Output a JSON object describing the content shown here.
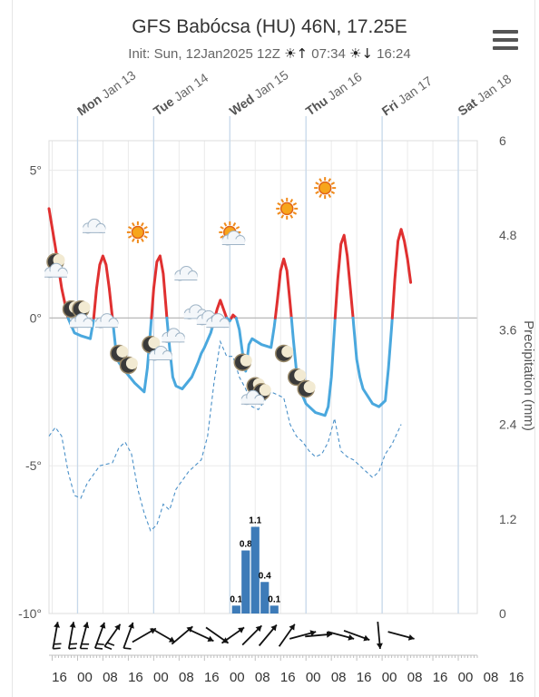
{
  "header": {
    "title": "GFS Babócsa (HU) 46N, 17.25E",
    "init_label": "Init: Sun, 12Jan2025 12Z",
    "sunrise": "07:34",
    "sunset": "16:24",
    "sunrise_icon": "sunrise-icon",
    "sunset_icon": "sunset-icon",
    "menu_icon": "hamburger-menu-icon"
  },
  "chart_data": {
    "type": "line",
    "x_unit": "hours since Sun 12 Jan 16:00",
    "x_range": [
      -1,
      134
    ],
    "days": [
      {
        "dow": "Mon",
        "date": "Jan 13",
        "hour": 8
      },
      {
        "dow": "Tue",
        "date": "Jan 14",
        "hour": 32
      },
      {
        "dow": "Wed",
        "date": "Jan 15",
        "hour": 56
      },
      {
        "dow": "Thu",
        "date": "Jan 16",
        "hour": 80
      },
      {
        "dow": "Fri",
        "date": "Jan 17",
        "hour": 104
      },
      {
        "dow": "Sat",
        "date": "Jan 18",
        "hour": 128
      }
    ],
    "hour_ticks": [
      {
        "h": 0,
        "label": "16"
      },
      {
        "h": 8,
        "label": "00"
      },
      {
        "h": 16,
        "label": "08"
      },
      {
        "h": 24,
        "label": "16"
      },
      {
        "h": 32,
        "label": "00"
      },
      {
        "h": 40,
        "label": "08"
      },
      {
        "h": 48,
        "label": "16"
      },
      {
        "h": 56,
        "label": "00"
      },
      {
        "h": 64,
        "label": "08"
      },
      {
        "h": 72,
        "label": "16"
      },
      {
        "h": 80,
        "label": "00"
      },
      {
        "h": 88,
        "label": "08"
      },
      {
        "h": 96,
        "label": "16"
      },
      {
        "h": 104,
        "label": "00"
      },
      {
        "h": 112,
        "label": "08"
      },
      {
        "h": 120,
        "label": "16"
      },
      {
        "h": 128,
        "label": "00"
      },
      {
        "h": 136,
        "label": "08"
      },
      {
        "h": 144,
        "label": "16"
      }
    ],
    "y_left": {
      "unit": "°C",
      "range": [
        -10,
        6
      ],
      "ticks": [
        {
          "v": 5,
          "label": "5°"
        },
        {
          "v": 0,
          "label": "0°"
        },
        {
          "v": -5,
          "label": "-5°"
        },
        {
          "v": -10,
          "label": "-10°"
        }
      ]
    },
    "y_right": {
      "label": "Precipitation (mm)",
      "range": [
        0,
        6
      ],
      "ticks": [
        "6",
        "4.8",
        "3.6",
        "2.4",
        "1.2",
        "0"
      ]
    },
    "series": [
      {
        "kind": "temperature",
        "color_above_zero": "#e03030",
        "color_below_zero": "#4aa8de",
        "points": [
          [
            -1,
            3.7
          ],
          [
            1,
            2.4
          ],
          [
            3,
            1.0
          ],
          [
            5,
            0.0
          ],
          [
            7,
            -0.5
          ],
          [
            9,
            -0.6
          ],
          [
            12,
            -0.7
          ],
          [
            13,
            -0.1
          ],
          [
            14,
            1.0
          ],
          [
            15,
            1.8
          ],
          [
            16,
            2.1
          ],
          [
            17,
            1.8
          ],
          [
            18,
            1.0
          ],
          [
            19,
            0.0
          ],
          [
            20,
            -1.0
          ],
          [
            21,
            -1.5
          ],
          [
            23,
            -1.8
          ],
          [
            26,
            -2.2
          ],
          [
            29,
            -2.5
          ],
          [
            30,
            -1.7
          ],
          [
            31,
            -0.4
          ],
          [
            32,
            1.0
          ],
          [
            33,
            1.9
          ],
          [
            34,
            2.1
          ],
          [
            35,
            1.5
          ],
          [
            36,
            0.2
          ],
          [
            37,
            -1.0
          ],
          [
            38,
            -2.0
          ],
          [
            39,
            -2.3
          ],
          [
            41,
            -2.4
          ],
          [
            44,
            -2.0
          ],
          [
            46,
            -1.5
          ],
          [
            47,
            -1.2
          ],
          [
            48,
            -1.0
          ],
          [
            50,
            -0.5
          ],
          [
            52,
            0.3
          ],
          [
            53,
            0.6
          ],
          [
            54,
            0.3
          ],
          [
            55,
            0.0
          ],
          [
            56,
            -0.1
          ],
          [
            57,
            0.1
          ],
          [
            58,
            0.0
          ],
          [
            59,
            -0.4
          ],
          [
            60,
            -1.2
          ],
          [
            61,
            -1.8
          ],
          [
            62,
            -0.9
          ],
          [
            63,
            -0.7
          ],
          [
            66,
            -0.9
          ],
          [
            69,
            -1.0
          ],
          [
            70,
            -0.3
          ],
          [
            71,
            0.6
          ],
          [
            72,
            1.6
          ],
          [
            73,
            2.0
          ],
          [
            74,
            1.6
          ],
          [
            75,
            0.5
          ],
          [
            76,
            -0.7
          ],
          [
            77,
            -1.8
          ],
          [
            78,
            -2.4
          ],
          [
            80,
            -2.9
          ],
          [
            83,
            -3.2
          ],
          [
            86,
            -3.3
          ],
          [
            87,
            -3.0
          ],
          [
            88,
            -2.0
          ],
          [
            89,
            -0.3
          ],
          [
            90,
            1.3
          ],
          [
            91,
            2.5
          ],
          [
            92,
            2.8
          ],
          [
            93,
            2.1
          ],
          [
            94,
            1.0
          ],
          [
            95,
            -0.2
          ],
          [
            96,
            -1.4
          ],
          [
            97,
            -2.0
          ],
          [
            98,
            -2.4
          ],
          [
            101,
            -2.9
          ],
          [
            103,
            -3.0
          ],
          [
            105,
            -2.8
          ],
          [
            106,
            -1.7
          ],
          [
            107,
            -0.3
          ],
          [
            108,
            1.3
          ],
          [
            109,
            2.6
          ],
          [
            110,
            3.0
          ],
          [
            111,
            2.6
          ],
          [
            112,
            2.0
          ],
          [
            113,
            1.2
          ]
        ]
      },
      {
        "kind": "dew-point",
        "color": "#4a90c8",
        "style": "dashed",
        "points": [
          [
            -1,
            -4.0
          ],
          [
            1,
            -3.7
          ],
          [
            3,
            -4.0
          ],
          [
            5,
            -5.2
          ],
          [
            7,
            -6.0
          ],
          [
            9,
            -6.1
          ],
          [
            11,
            -5.6
          ],
          [
            15,
            -5.0
          ],
          [
            19,
            -4.9
          ],
          [
            21,
            -4.4
          ],
          [
            23,
            -4.2
          ],
          [
            25,
            -4.6
          ],
          [
            27,
            -5.8
          ],
          [
            29,
            -6.6
          ],
          [
            31,
            -7.2
          ],
          [
            33,
            -7.0
          ],
          [
            35,
            -6.3
          ],
          [
            37,
            -6.5
          ],
          [
            39,
            -5.8
          ],
          [
            43,
            -5.2
          ],
          [
            47,
            -4.8
          ],
          [
            49,
            -4.0
          ],
          [
            51,
            -2.2
          ],
          [
            53,
            -0.8
          ],
          [
            55,
            -1.3
          ],
          [
            57,
            -1.3
          ],
          [
            59,
            -2.0
          ],
          [
            61,
            -2.4
          ],
          [
            63,
            -3.0
          ],
          [
            65,
            -3.1
          ],
          [
            67,
            -2.8
          ],
          [
            69,
            -2.5
          ],
          [
            71,
            -2.6
          ],
          [
            73,
            -2.7
          ],
          [
            75,
            -3.6
          ],
          [
            77,
            -4.0
          ],
          [
            79,
            -4.2
          ],
          [
            81,
            -4.5
          ],
          [
            83,
            -4.7
          ],
          [
            85,
            -4.6
          ],
          [
            87,
            -4.2
          ],
          [
            89,
            -3.4
          ],
          [
            91,
            -4.5
          ],
          [
            93,
            -4.7
          ],
          [
            95,
            -4.8
          ],
          [
            97,
            -5.0
          ],
          [
            99,
            -5.2
          ],
          [
            101,
            -5.4
          ],
          [
            103,
            -5.2
          ],
          [
            105,
            -4.6
          ],
          [
            107,
            -4.3
          ],
          [
            110,
            -3.6
          ]
        ]
      },
      {
        "kind": "precipitation",
        "type": "bar",
        "color": "#3d7bb8",
        "bars": [
          {
            "h": 58,
            "value": 0.1,
            "label": "0.1"
          },
          {
            "h": 61,
            "value": 0.8,
            "label": "0.8"
          },
          {
            "h": 64,
            "value": 1.1,
            "label": "1.1"
          },
          {
            "h": 67,
            "value": 0.4,
            "label": "0.4"
          },
          {
            "h": 70,
            "value": 0.1,
            "label": "0.1"
          }
        ]
      }
    ],
    "weather_icons": [
      {
        "h": 1,
        "t": 1.9,
        "icon": "moon-icon"
      },
      {
        "h": 1,
        "t": 1.6,
        "icon": "cloud-icon"
      },
      {
        "h": 6,
        "t": 0.3,
        "icon": "moon-icon"
      },
      {
        "h": 9,
        "t": 0.3,
        "icon": "moon-icon"
      },
      {
        "h": 9,
        "t": -0.1,
        "icon": "cloud-icon"
      },
      {
        "h": 13,
        "t": 3.1,
        "icon": "cloud-icon"
      },
      {
        "h": 17,
        "t": -0.1,
        "icon": "cloud-icon"
      },
      {
        "h": 21,
        "t": -1.2,
        "icon": "moon-icon"
      },
      {
        "h": 24,
        "t": -1.6,
        "icon": "moon-icon"
      },
      {
        "h": 27,
        "t": 2.9,
        "icon": "sun-icon"
      },
      {
        "h": 31,
        "t": -0.9,
        "icon": "moon-icon"
      },
      {
        "h": 34,
        "t": -1.2,
        "icon": "cloud-icon"
      },
      {
        "h": 38,
        "t": -0.6,
        "icon": "cloud-icon"
      },
      {
        "h": 42,
        "t": 1.5,
        "icon": "cloud-icon"
      },
      {
        "h": 45,
        "t": 0.2,
        "icon": "cloud-icon"
      },
      {
        "h": 49,
        "t": 0.0,
        "icon": "cloud-icon"
      },
      {
        "h": 52,
        "t": -0.1,
        "icon": "cloud-icon"
      },
      {
        "h": 56,
        "t": 2.9,
        "icon": "sun-icon"
      },
      {
        "h": 57,
        "t": 2.7,
        "icon": "cloud-icon"
      },
      {
        "h": 60,
        "t": -1.5,
        "icon": "moon-icon"
      },
      {
        "h": 64,
        "t": -2.3,
        "icon": "moon-icon"
      },
      {
        "h": 66,
        "t": -2.5,
        "icon": "moon-icon"
      },
      {
        "h": 63,
        "t": -2.7,
        "icon": "cloud-icon"
      },
      {
        "h": 73,
        "t": -1.2,
        "icon": "moon-icon"
      },
      {
        "h": 74,
        "t": 3.7,
        "icon": "sun-icon"
      },
      {
        "h": 77,
        "t": -2.0,
        "icon": "moon-icon"
      },
      {
        "h": 80,
        "t": -2.4,
        "icon": "moon-icon"
      },
      {
        "h": 86,
        "t": 4.4,
        "icon": "sun-icon"
      }
    ],
    "wind": [
      {
        "h": 1,
        "dir": 190,
        "barbs": 2
      },
      {
        "h": 6,
        "dir": 190,
        "barbs": 2
      },
      {
        "h": 10,
        "dir": 195,
        "barbs": 2
      },
      {
        "h": 15,
        "dir": 200,
        "barbs": 2
      },
      {
        "h": 19,
        "dir": 215,
        "barbs": 2
      },
      {
        "h": 24,
        "dir": 200,
        "barbs": 1
      },
      {
        "h": 29,
        "dir": 240,
        "barbs": 0
      },
      {
        "h": 35,
        "dir": 300,
        "barbs": 0
      },
      {
        "h": 41,
        "dir": 230,
        "barbs": 0
      },
      {
        "h": 47,
        "dir": 295,
        "barbs": 0
      },
      {
        "h": 52,
        "dir": 305,
        "barbs": 0
      },
      {
        "h": 57,
        "dir": 235,
        "barbs": 0
      },
      {
        "h": 63,
        "dir": 225,
        "barbs": 0
      },
      {
        "h": 68,
        "dir": 220,
        "barbs": 0
      },
      {
        "h": 74,
        "dir": 215,
        "barbs": 0
      },
      {
        "h": 79,
        "dir": 255,
        "barbs": 0
      },
      {
        "h": 84,
        "dir": 265,
        "barbs": 0
      },
      {
        "h": 91,
        "dir": 285,
        "barbs": 0
      },
      {
        "h": 96,
        "dir": 290,
        "barbs": 0
      },
      {
        "h": 103,
        "dir": 355,
        "barbs": 0
      },
      {
        "h": 110,
        "dir": 285,
        "barbs": 0
      }
    ]
  }
}
